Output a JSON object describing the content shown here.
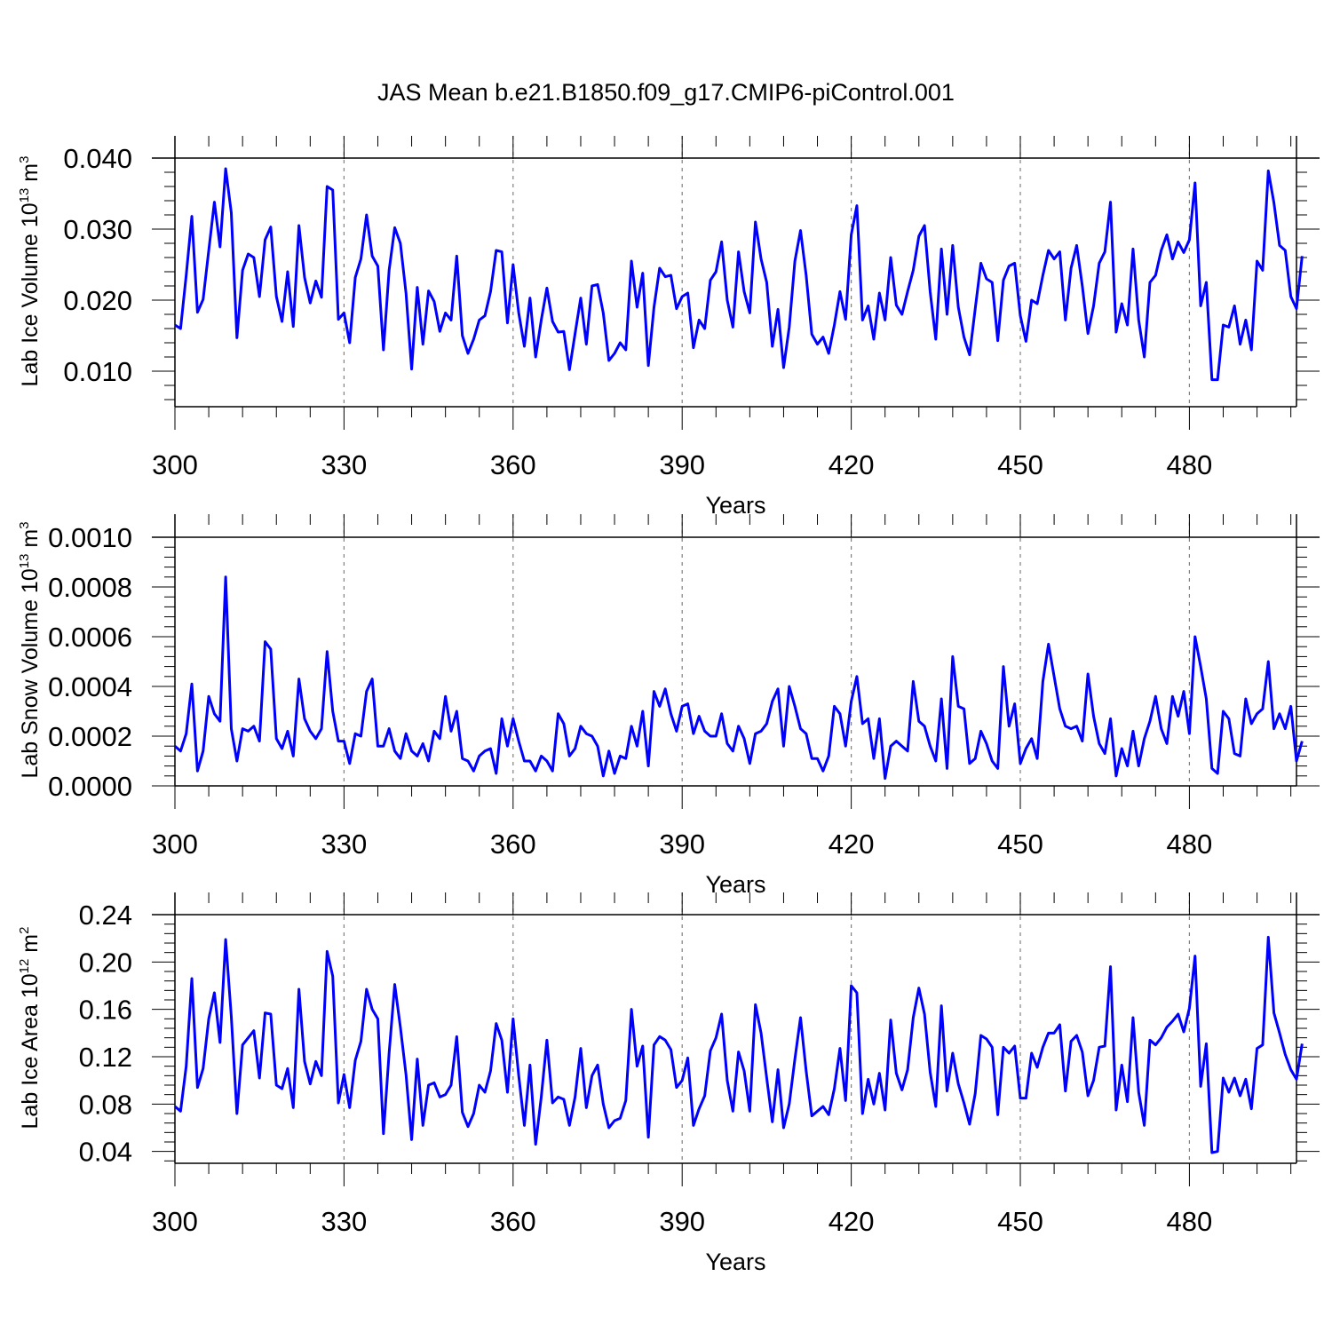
{
  "figure": {
    "title": "JAS Mean b.e21.B1850.f09_g17.CMIP6-piControl.001"
  },
  "style": {
    "line_color": "#0000ff",
    "axis_color": "#000000",
    "grid_color": "#808080"
  },
  "chart_data": [
    {
      "type": "line",
      "name": "lab-ice-volume",
      "xlabel": "Years",
      "ylabel": {
        "main": "Lab Ice Volume 10",
        "exp": "13",
        "unit": " m",
        "unit_exp": "3"
      },
      "xlim": [
        300,
        499
      ],
      "ylim": [
        0.005,
        0.04
      ],
      "xticks": [
        300,
        330,
        360,
        390,
        420,
        450,
        480
      ],
      "xtick_labels": [
        "300",
        "330",
        "360",
        "390",
        "420",
        "450",
        "480"
      ],
      "yticks": [
        0.01,
        0.02,
        0.03,
        0.04
      ],
      "ytick_labels": [
        "0.010",
        "0.020",
        "0.030",
        "0.040"
      ],
      "grid": "x dashed",
      "x_start": 300,
      "values": [
        0.0165,
        0.016,
        0.0235,
        0.0318,
        0.0183,
        0.0201,
        0.027,
        0.0338,
        0.0275,
        0.0385,
        0.0323,
        0.0147,
        0.0242,
        0.0265,
        0.026,
        0.0205,
        0.0285,
        0.0303,
        0.0205,
        0.017,
        0.024,
        0.0163,
        0.0305,
        0.0232,
        0.0196,
        0.0227,
        0.0204,
        0.036,
        0.0355,
        0.0173,
        0.0182,
        0.014,
        0.0232,
        0.0258,
        0.032,
        0.0262,
        0.0248,
        0.013,
        0.0242,
        0.0302,
        0.028,
        0.021,
        0.0103,
        0.0218,
        0.0138,
        0.0213,
        0.0198,
        0.0156,
        0.0182,
        0.0172,
        0.0262,
        0.015,
        0.0125,
        0.0145,
        0.0172,
        0.0178,
        0.0212,
        0.027,
        0.0268,
        0.0168,
        0.025,
        0.0182,
        0.0135,
        0.0203,
        0.012,
        0.0172,
        0.0217,
        0.017,
        0.0155,
        0.0156,
        0.0102,
        0.0153,
        0.0203,
        0.0138,
        0.022,
        0.0222,
        0.0182,
        0.0115,
        0.0125,
        0.014,
        0.013,
        0.0255,
        0.019,
        0.0238,
        0.0108,
        0.019,
        0.0245,
        0.0233,
        0.0235,
        0.0188,
        0.0205,
        0.021,
        0.0133,
        0.0172,
        0.016,
        0.0228,
        0.024,
        0.0282,
        0.02,
        0.0162,
        0.0268,
        0.0212,
        0.0182,
        0.031,
        0.0258,
        0.0225,
        0.0135,
        0.0187,
        0.0105,
        0.0162,
        0.0255,
        0.0298,
        0.0235,
        0.0152,
        0.0138,
        0.0148,
        0.0125,
        0.0165,
        0.0212,
        0.0173,
        0.0292,
        0.0333,
        0.0172,
        0.0192,
        0.0145,
        0.021,
        0.0172,
        0.026,
        0.0193,
        0.018,
        0.0212,
        0.0242,
        0.029,
        0.0305,
        0.0212,
        0.0145,
        0.0272,
        0.018,
        0.0277,
        0.019,
        0.0148,
        0.0123,
        0.0188,
        0.0252,
        0.023,
        0.0225,
        0.0143,
        0.0228,
        0.0248,
        0.0252,
        0.0178,
        0.0142,
        0.02,
        0.0195,
        0.0235,
        0.027,
        0.0258,
        0.0268,
        0.0172,
        0.0245,
        0.0277,
        0.022,
        0.0153,
        0.0192,
        0.0252,
        0.0268,
        0.0338,
        0.0155,
        0.0195,
        0.0165,
        0.0272,
        0.0172,
        0.012,
        0.0225,
        0.0235,
        0.027,
        0.0292,
        0.0258,
        0.0282,
        0.0267,
        0.0285,
        0.0365,
        0.0192,
        0.0225,
        0.0088,
        0.0088,
        0.0165,
        0.0162,
        0.0192,
        0.0138,
        0.0172,
        0.013,
        0.0255,
        0.0242,
        0.0382,
        0.0337,
        0.0277,
        0.027,
        0.0205,
        0.0188,
        0.0262
      ]
    },
    {
      "type": "line",
      "name": "lab-snow-volume",
      "xlabel": "Years",
      "ylabel": {
        "main": "Lab Snow Volume 10",
        "exp": "13",
        "unit": " m",
        "unit_exp": "3"
      },
      "xlim": [
        300,
        499
      ],
      "ylim": [
        0.0,
        0.001
      ],
      "xticks": [
        300,
        330,
        360,
        390,
        420,
        450,
        480
      ],
      "xtick_labels": [
        "300",
        "330",
        "360",
        "390",
        "420",
        "450",
        "480"
      ],
      "yticks": [
        0.0,
        0.0002,
        0.0004,
        0.0006,
        0.0008,
        0.001
      ],
      "ytick_labels": [
        "0.0000",
        "0.0002",
        "0.0004",
        "0.0006",
        "0.0008",
        "0.0010"
      ],
      "grid": "x dashed",
      "x_start": 300,
      "values": [
        0.00016,
        0.00014,
        0.00021,
        0.00041,
        6e-05,
        0.00014,
        0.00036,
        0.00029,
        0.00026,
        0.00084,
        0.00023,
        0.0001,
        0.00023,
        0.00022,
        0.00024,
        0.00018,
        0.00058,
        0.00055,
        0.00019,
        0.00015,
        0.00022,
        0.00012,
        0.00043,
        0.00027,
        0.00022,
        0.00019,
        0.00023,
        0.00054,
        0.0003,
        0.00018,
        0.00018,
        9e-05,
        0.00021,
        0.0002,
        0.00038,
        0.00043,
        0.00016,
        0.00016,
        0.00023,
        0.00014,
        0.00011,
        0.00021,
        0.00014,
        0.00012,
        0.00017,
        0.0001,
        0.00022,
        0.00019,
        0.00036,
        0.00022,
        0.0003,
        0.00011,
        0.0001,
        6e-05,
        0.00012,
        0.00014,
        0.00015,
        5e-05,
        0.00027,
        0.00016,
        0.00027,
        0.00018,
        0.0001,
        0.0001,
        6e-05,
        0.00012,
        0.0001,
        6e-05,
        0.00029,
        0.00025,
        0.00012,
        0.00015,
        0.00024,
        0.00021,
        0.0002,
        0.00016,
        4e-05,
        0.00014,
        5e-05,
        0.00012,
        0.00011,
        0.00024,
        0.00016,
        0.0003,
        8e-05,
        0.00038,
        0.00032,
        0.00039,
        0.00029,
        0.00022,
        0.00032,
        0.00033,
        0.00021,
        0.00028,
        0.00022,
        0.0002,
        0.0002,
        0.00029,
        0.00017,
        0.00014,
        0.00024,
        0.00019,
        9e-05,
        0.00021,
        0.00022,
        0.00025,
        0.00034,
        0.00039,
        0.00016,
        0.0004,
        0.00032,
        0.00023,
        0.00021,
        0.00011,
        0.00011,
        6e-05,
        0.00012,
        0.00032,
        0.00029,
        0.00016,
        0.00034,
        0.00044,
        0.00025,
        0.00027,
        0.00011,
        0.00027,
        3e-05,
        0.00016,
        0.00018,
        0.00016,
        0.00014,
        0.00042,
        0.00026,
        0.00024,
        0.00016,
        0.0001,
        0.00035,
        7e-05,
        0.00052,
        0.00032,
        0.00031,
        9e-05,
        0.00011,
        0.00022,
        0.00017,
        0.0001,
        7e-05,
        0.00048,
        0.00024,
        0.00033,
        9e-05,
        0.00015,
        0.00019,
        0.00011,
        0.00042,
        0.00057,
        0.00044,
        0.00031,
        0.00024,
        0.00023,
        0.00024,
        0.00018,
        0.00045,
        0.00028,
        0.00017,
        0.00013,
        0.00027,
        4e-05,
        0.00015,
        8e-05,
        0.00022,
        8e-05,
        0.00019,
        0.00026,
        0.00036,
        0.00023,
        0.00017,
        0.00036,
        0.00028,
        0.00038,
        0.00021,
        0.0006,
        0.00048,
        0.00035,
        7e-05,
        5e-05,
        0.0003,
        0.00027,
        0.00013,
        0.00012,
        0.00035,
        0.00025,
        0.00029,
        0.00031,
        0.0005,
        0.00023,
        0.00029,
        0.00023,
        0.00032,
        0.0001,
        0.00018
      ]
    },
    {
      "type": "line",
      "name": "lab-ice-area",
      "xlabel": "Years",
      "ylabel": {
        "main": "Lab Ice Area 10",
        "exp": "12",
        "unit": " m",
        "unit_exp": "2"
      },
      "xlim": [
        300,
        499
      ],
      "ylim": [
        0.03,
        0.24
      ],
      "xticks": [
        300,
        330,
        360,
        390,
        420,
        450,
        480
      ],
      "xtick_labels": [
        "300",
        "330",
        "360",
        "390",
        "420",
        "450",
        "480"
      ],
      "yticks": [
        0.04,
        0.08,
        0.12,
        0.16,
        0.2,
        0.24
      ],
      "ytick_labels": [
        "0.04",
        "0.08",
        "0.12",
        "0.16",
        "0.20",
        "0.24"
      ],
      "grid": "x dashed",
      "x_start": 300,
      "values": [
        0.078,
        0.074,
        0.112,
        0.186,
        0.094,
        0.11,
        0.152,
        0.174,
        0.132,
        0.219,
        0.154,
        0.072,
        0.13,
        0.136,
        0.142,
        0.102,
        0.157,
        0.156,
        0.096,
        0.093,
        0.11,
        0.077,
        0.177,
        0.116,
        0.097,
        0.116,
        0.104,
        0.209,
        0.188,
        0.081,
        0.105,
        0.077,
        0.117,
        0.133,
        0.177,
        0.16,
        0.152,
        0.055,
        0.123,
        0.181,
        0.145,
        0.105,
        0.05,
        0.118,
        0.062,
        0.096,
        0.098,
        0.086,
        0.088,
        0.096,
        0.137,
        0.073,
        0.061,
        0.072,
        0.096,
        0.09,
        0.108,
        0.148,
        0.134,
        0.09,
        0.152,
        0.104,
        0.062,
        0.113,
        0.046,
        0.086,
        0.134,
        0.081,
        0.086,
        0.084,
        0.062,
        0.086,
        0.127,
        0.077,
        0.104,
        0.113,
        0.08,
        0.06,
        0.066,
        0.068,
        0.083,
        0.16,
        0.112,
        0.129,
        0.052,
        0.13,
        0.137,
        0.134,
        0.126,
        0.094,
        0.1,
        0.119,
        0.062,
        0.076,
        0.087,
        0.125,
        0.136,
        0.156,
        0.1,
        0.074,
        0.124,
        0.108,
        0.074,
        0.164,
        0.14,
        0.102,
        0.065,
        0.109,
        0.06,
        0.08,
        0.118,
        0.153,
        0.108,
        0.07,
        0.074,
        0.078,
        0.071,
        0.093,
        0.127,
        0.083,
        0.18,
        0.174,
        0.072,
        0.101,
        0.08,
        0.106,
        0.075,
        0.151,
        0.106,
        0.092,
        0.109,
        0.153,
        0.178,
        0.156,
        0.107,
        0.078,
        0.163,
        0.091,
        0.123,
        0.097,
        0.081,
        0.063,
        0.089,
        0.138,
        0.135,
        0.128,
        0.071,
        0.128,
        0.123,
        0.129,
        0.085,
        0.085,
        0.123,
        0.111,
        0.128,
        0.14,
        0.14,
        0.147,
        0.091,
        0.133,
        0.138,
        0.124,
        0.087,
        0.1,
        0.128,
        0.129,
        0.196,
        0.075,
        0.113,
        0.082,
        0.153,
        0.09,
        0.062,
        0.134,
        0.13,
        0.136,
        0.145,
        0.15,
        0.156,
        0.141,
        0.161,
        0.205,
        0.095,
        0.131,
        0.039,
        0.04,
        0.102,
        0.09,
        0.102,
        0.087,
        0.101,
        0.076,
        0.127,
        0.13,
        0.221,
        0.157,
        0.14,
        0.122,
        0.109,
        0.101,
        0.131
      ]
    }
  ]
}
